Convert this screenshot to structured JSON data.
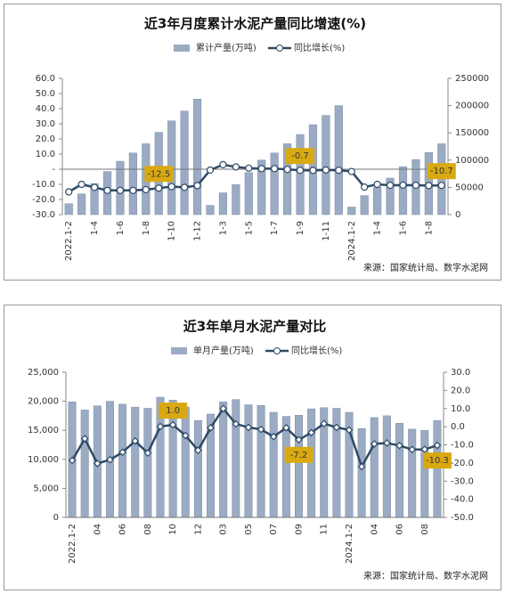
{
  "chart_data": [
    {
      "type": "combo",
      "title": "近3年月度累计水泥产量同比增速(%)",
      "source": "来源：国家统计局、数字水泥网",
      "categories": [
        "2022.1-2",
        null,
        "1-4",
        null,
        "1-6",
        null,
        "1-8",
        null,
        "1-10",
        null,
        "1-12",
        null,
        "1-3",
        null,
        "1-5",
        null,
        "1-7",
        null,
        "1-9",
        null,
        "1-11",
        null,
        "2024.1-2",
        null,
        "1-4",
        null,
        "1-6",
        null,
        "1-8",
        null
      ],
      "series": [
        {
          "name": "累计产量(万吨)",
          "type": "bar",
          "axis": "y2",
          "color": "#9aabc3",
          "values": [
            20000,
            38000,
            57000,
            79000,
            98000,
            113000,
            130000,
            151000,
            172000,
            190000,
            212000,
            17000,
            40000,
            55000,
            77000,
            100000,
            113000,
            130000,
            147000,
            165000,
            182000,
            200000,
            14000,
            35000,
            50000,
            67000,
            88000,
            101000,
            114000,
            130000
          ]
        },
        {
          "name": "同比增长(%)",
          "type": "line",
          "axis": "y",
          "color": "#2f4a66",
          "marker": "circle",
          "values": [
            -15.0,
            -10.0,
            -12.0,
            -14.0,
            -14.0,
            -14.0,
            -13.5,
            -12.5,
            -11.5,
            -12.0,
            -10.8,
            -0.6,
            3.0,
            1.5,
            0.7,
            0.4,
            0.4,
            -0.1,
            -0.7,
            -0.8,
            -0.5,
            -0.7,
            -1.5,
            -11.8,
            -10.0,
            -10.6,
            -10.5,
            -10.6,
            -10.8,
            -10.7
          ],
          "value_labels": [
            null,
            null,
            null,
            null,
            null,
            null,
            null,
            "-12.5",
            null,
            null,
            null,
            null,
            null,
            null,
            null,
            null,
            null,
            null,
            "-0.7",
            null,
            null,
            null,
            null,
            null,
            null,
            null,
            null,
            null,
            null,
            "-10.7"
          ]
        }
      ],
      "ylim": [
        -30,
        60
      ],
      "yticks": [
        {
          "value": -30,
          "label": "-30.0"
        },
        {
          "value": -20,
          "label": "-20.0"
        },
        {
          "value": -10,
          "label": "-10.0"
        },
        {
          "value": 0,
          "label": "-"
        },
        {
          "value": 10,
          "label": "10.0"
        },
        {
          "value": 20,
          "label": "20.0"
        },
        {
          "value": 30,
          "label": "30.0"
        },
        {
          "value": 40,
          "label": "40.0"
        },
        {
          "value": 50,
          "label": "50.0"
        },
        {
          "value": 60,
          "label": "60.0"
        }
      ],
      "y2lim": [
        0,
        250000
      ],
      "y2ticks": [
        0,
        50000,
        100000,
        150000,
        200000,
        250000
      ]
    },
    {
      "type": "combo",
      "title": "近3年单月水泥产量对比",
      "source": "来源：国家统计局、数字水泥网",
      "categories": [
        "2022.1-2",
        null,
        "04",
        null,
        "06",
        null,
        "08",
        null,
        "10",
        null,
        "12",
        null,
        "03",
        null,
        "05",
        null,
        "07",
        null,
        "09",
        null,
        "11",
        null,
        "2024.1-2",
        null,
        "04",
        null,
        "06",
        null,
        "08",
        null
      ],
      "series": [
        {
          "name": "单月产量(万吨)",
          "type": "bar",
          "axis": "y",
          "color": "#9aabc3",
          "values": [
            19900,
            18500,
            19200,
            20000,
            19500,
            19000,
            18800,
            20700,
            20200,
            19000,
            16700,
            17800,
            19900,
            20300,
            19400,
            19300,
            18100,
            17400,
            17600,
            18700,
            18900,
            18800,
            18100,
            15300,
            17200,
            17500,
            16200,
            15200,
            15000,
            16700
          ]
        },
        {
          "name": "同比增长(%)",
          "type": "line",
          "axis": "y2",
          "color": "#2f4a66",
          "marker": "diamond",
          "values": [
            -18.6,
            -6.6,
            -20.3,
            -18.2,
            -14.1,
            -7.9,
            -14.5,
            0.1,
            1.0,
            -4.9,
            -13.0,
            -0.6,
            10.0,
            1.5,
            -0.4,
            -1.5,
            -5.5,
            -0.6,
            -7.2,
            -3.3,
            1.7,
            -0.4,
            -1.8,
            -22.0,
            -9.5,
            -9.0,
            -10.4,
            -12.6,
            -12.5,
            -10.3
          ],
          "value_labels": [
            null,
            null,
            null,
            null,
            null,
            null,
            null,
            null,
            "1.0",
            null,
            null,
            null,
            null,
            null,
            null,
            null,
            null,
            null,
            "-7.2",
            null,
            null,
            null,
            null,
            null,
            null,
            null,
            null,
            null,
            null,
            "-10.3"
          ]
        }
      ],
      "ylim": [
        0,
        25000
      ],
      "yticks": [
        0,
        {
          "value": 5000,
          "label": "5,000"
        },
        {
          "value": 10000,
          "label": "10,000"
        },
        {
          "value": 15000,
          "label": "15,000"
        },
        {
          "value": 20000,
          "label": "20,000"
        },
        {
          "value": 25000,
          "label": "25,000"
        }
      ],
      "y2lim": [
        -50,
        30
      ],
      "y2ticks": [
        {
          "value": -50,
          "label": "-50.0"
        },
        {
          "value": -40,
          "label": "-40.0"
        },
        {
          "value": -30,
          "label": "-30.0"
        },
        {
          "value": -20,
          "label": "-20.0"
        },
        {
          "value": -10,
          "label": "-10.0"
        },
        {
          "value": 0,
          "label": "0.0"
        },
        {
          "value": 10,
          "label": "10.0"
        },
        {
          "value": 20,
          "label": "20.0"
        },
        {
          "value": 30,
          "label": "30.0"
        }
      ]
    }
  ]
}
